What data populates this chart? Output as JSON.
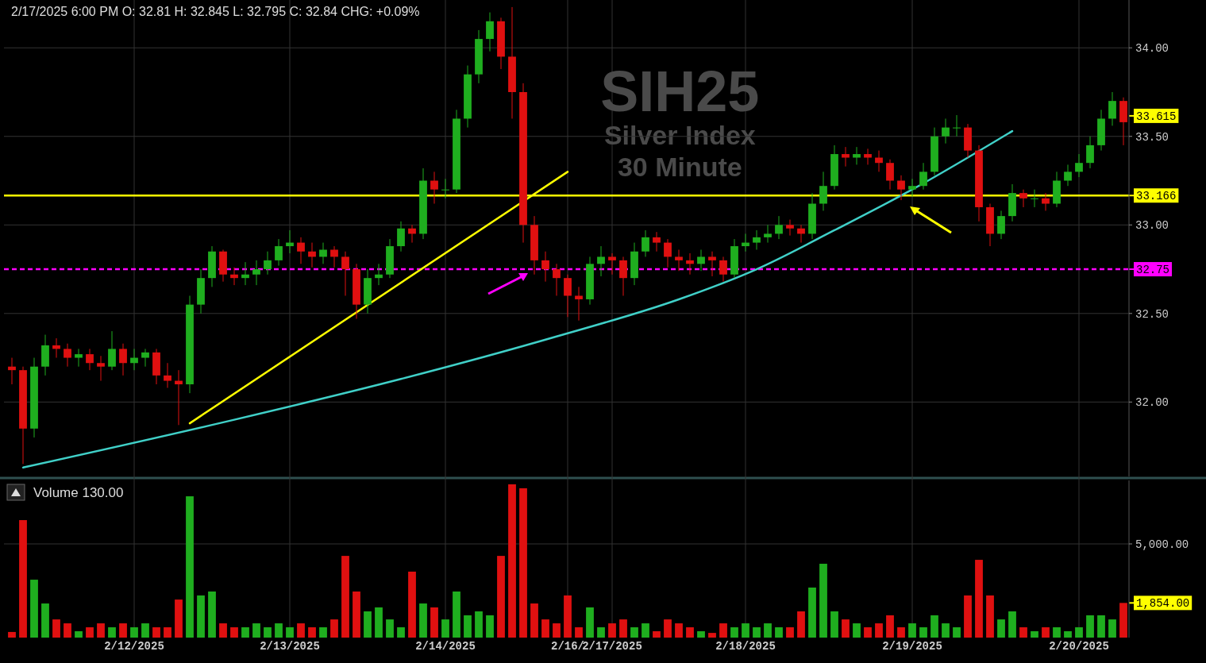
{
  "chart_data": [
    {
      "type": "candlestick",
      "title": "SIH25",
      "subtitle": "Silver Index\n30 Minute",
      "categories": [
        null,
        null,
        null,
        null,
        null,
        null,
        null,
        null,
        null,
        null,
        null,
        null,
        null,
        null,
        null,
        null,
        null,
        null,
        null,
        null,
        null,
        null,
        null,
        null,
        null,
        null,
        null,
        null,
        null,
        null,
        null,
        null,
        null,
        null,
        null,
        null,
        null,
        null,
        null,
        null,
        null,
        null,
        null,
        null,
        null,
        null,
        null,
        null,
        null,
        null,
        null,
        null,
        null,
        null,
        null,
        null,
        null,
        null,
        null,
        null,
        null,
        null,
        null,
        null,
        null,
        null,
        null,
        null,
        null,
        null,
        null,
        null,
        null,
        null,
        null,
        null,
        null,
        null,
        null,
        null,
        null,
        null,
        null,
        null,
        null,
        null,
        null,
        null,
        null,
        null,
        null,
        null,
        null,
        null,
        null,
        null,
        null,
        null,
        null,
        null,
        null
      ],
      "ohlc": [
        [
          32.2,
          32.25,
          32.1,
          32.18
        ],
        [
          32.18,
          32.2,
          31.65,
          31.85
        ],
        [
          31.85,
          32.25,
          31.8,
          32.2
        ],
        [
          32.2,
          32.38,
          32.15,
          32.32
        ],
        [
          32.32,
          32.36,
          32.25,
          32.3
        ],
        [
          32.3,
          32.33,
          32.2,
          32.25
        ],
        [
          32.25,
          32.3,
          32.2,
          32.27
        ],
        [
          32.27,
          32.3,
          32.18,
          32.22
        ],
        [
          32.22,
          32.26,
          32.12,
          32.2
        ],
        [
          32.2,
          32.4,
          32.18,
          32.3
        ],
        [
          32.3,
          32.33,
          32.15,
          32.22
        ],
        [
          32.22,
          32.3,
          32.18,
          32.25
        ],
        [
          32.25,
          32.3,
          32.2,
          32.28
        ],
        [
          32.28,
          32.3,
          32.1,
          32.15
        ],
        [
          32.15,
          32.22,
          32.08,
          32.12
        ],
        [
          32.12,
          32.18,
          31.87,
          32.1
        ],
        [
          32.1,
          32.6,
          32.05,
          32.55
        ],
        [
          32.55,
          32.75,
          32.5,
          32.7
        ],
        [
          32.7,
          32.88,
          32.65,
          32.85
        ],
        [
          32.85,
          32.86,
          32.68,
          32.72
        ],
        [
          32.72,
          32.76,
          32.66,
          32.7
        ],
        [
          32.7,
          32.79,
          32.66,
          32.72
        ],
        [
          32.72,
          32.8,
          32.66,
          32.75
        ],
        [
          32.75,
          32.85,
          32.72,
          32.8
        ],
        [
          32.8,
          32.92,
          32.77,
          32.88
        ],
        [
          32.88,
          32.97,
          32.84,
          32.9
        ],
        [
          32.9,
          32.93,
          32.78,
          32.85
        ],
        [
          32.85,
          32.9,
          32.76,
          32.82
        ],
        [
          32.82,
          32.9,
          32.78,
          32.86
        ],
        [
          32.86,
          32.88,
          32.76,
          32.82
        ],
        [
          32.82,
          32.85,
          32.6,
          32.75
        ],
        [
          32.75,
          32.78,
          32.47,
          32.55
        ],
        [
          32.55,
          32.75,
          32.5,
          32.7
        ],
        [
          32.7,
          32.78,
          32.66,
          32.72
        ],
        [
          32.72,
          32.92,
          32.7,
          32.88
        ],
        [
          32.88,
          33.02,
          32.85,
          32.98
        ],
        [
          32.98,
          33.0,
          32.9,
          32.95
        ],
        [
          32.95,
          33.32,
          32.92,
          33.25
        ],
        [
          33.25,
          33.3,
          33.12,
          33.2
        ],
        [
          33.2,
          33.26,
          33.15,
          33.2
        ],
        [
          33.2,
          33.65,
          33.18,
          33.6
        ],
        [
          33.6,
          33.9,
          33.55,
          33.85
        ],
        [
          33.85,
          34.1,
          33.8,
          34.05
        ],
        [
          34.05,
          34.2,
          33.98,
          34.15
        ],
        [
          34.15,
          34.17,
          33.88,
          33.95
        ],
        [
          33.95,
          34.23,
          33.6,
          33.75
        ],
        [
          33.75,
          33.8,
          32.9,
          33.0
        ],
        [
          33.0,
          33.05,
          32.72,
          32.8
        ],
        [
          32.8,
          32.85,
          32.68,
          32.75
        ],
        [
          32.75,
          32.78,
          32.6,
          32.7
        ],
        [
          32.7,
          32.72,
          32.48,
          32.6
        ],
        [
          32.6,
          32.65,
          32.46,
          32.58
        ],
        [
          32.58,
          32.82,
          32.55,
          32.78
        ],
        [
          32.78,
          32.88,
          32.71,
          32.82
        ],
        [
          32.82,
          32.84,
          32.72,
          32.8
        ],
        [
          32.8,
          32.82,
          32.6,
          32.7
        ],
        [
          32.7,
          32.9,
          32.66,
          32.85
        ],
        [
          32.85,
          32.97,
          32.82,
          32.93
        ],
        [
          32.93,
          32.96,
          32.85,
          32.9
        ],
        [
          32.9,
          32.92,
          32.76,
          32.82
        ],
        [
          32.82,
          32.86,
          32.74,
          32.8
        ],
        [
          32.8,
          32.84,
          32.72,
          32.78
        ],
        [
          32.78,
          32.86,
          32.74,
          32.82
        ],
        [
          32.82,
          32.85,
          32.71,
          32.8
        ],
        [
          32.8,
          32.82,
          32.68,
          32.72
        ],
        [
          32.72,
          32.92,
          32.7,
          32.88
        ],
        [
          32.88,
          32.95,
          32.85,
          32.9
        ],
        [
          32.9,
          32.97,
          32.86,
          32.93
        ],
        [
          32.93,
          33.0,
          32.9,
          32.95
        ],
        [
          32.95,
          33.05,
          32.92,
          33.0
        ],
        [
          33.0,
          33.03,
          32.94,
          32.98
        ],
        [
          32.98,
          33.0,
          32.9,
          32.95
        ],
        [
          32.95,
          33.18,
          32.92,
          33.12
        ],
        [
          33.12,
          33.3,
          33.08,
          33.22
        ],
        [
          33.22,
          33.45,
          33.2,
          33.4
        ],
        [
          33.4,
          33.44,
          33.33,
          33.38
        ],
        [
          33.38,
          33.44,
          33.34,
          33.4
        ],
        [
          33.4,
          33.43,
          33.34,
          33.38
        ],
        [
          33.38,
          33.42,
          33.3,
          33.35
        ],
        [
          33.35,
          33.37,
          33.2,
          33.25
        ],
        [
          33.25,
          33.28,
          33.14,
          33.2
        ],
        [
          33.2,
          33.26,
          33.16,
          33.22
        ],
        [
          33.22,
          33.35,
          33.2,
          33.3
        ],
        [
          33.3,
          33.55,
          33.28,
          33.5
        ],
        [
          33.5,
          33.6,
          33.46,
          33.55
        ],
        [
          33.55,
          33.62,
          33.5,
          33.55
        ],
        [
          33.55,
          33.57,
          33.38,
          33.42
        ],
        [
          33.42,
          33.45,
          33.02,
          33.1
        ],
        [
          33.1,
          33.12,
          32.88,
          32.95
        ],
        [
          32.95,
          33.08,
          32.92,
          33.05
        ],
        [
          33.05,
          33.23,
          33.02,
          33.18
        ],
        [
          33.18,
          33.2,
          33.1,
          33.15
        ],
        [
          33.15,
          33.2,
          33.1,
          33.15
        ],
        [
          33.15,
          33.18,
          33.08,
          33.12
        ],
        [
          33.12,
          33.3,
          33.1,
          33.25
        ],
        [
          33.25,
          33.34,
          33.22,
          33.3
        ],
        [
          33.3,
          33.4,
          33.27,
          33.35
        ],
        [
          33.35,
          33.5,
          33.32,
          33.45
        ],
        [
          33.45,
          33.65,
          33.42,
          33.6
        ],
        [
          33.6,
          33.75,
          33.56,
          33.7
        ],
        [
          33.7,
          33.72,
          33.45,
          33.58
        ]
      ],
      "series": [
        {
          "type": "line",
          "color": "#ffff00",
          "values": [
            null,
            null,
            null,
            null,
            null,
            null,
            null,
            null,
            null,
            null,
            null,
            null,
            null,
            null,
            null,
            null,
            31.88,
            null,
            null,
            null,
            null,
            null,
            null,
            null,
            null,
            null,
            null,
            null,
            null,
            null,
            null,
            null,
            null,
            null,
            null,
            null,
            null,
            null,
            null,
            null,
            null,
            null,
            null,
            null,
            null,
            null,
            null,
            null,
            null,
            null,
            33.3,
            null,
            null,
            null,
            null,
            null,
            null,
            null,
            null,
            null,
            null,
            null,
            null,
            null,
            null,
            null,
            null,
            null,
            null,
            null,
            null,
            null,
            null,
            null,
            null,
            null,
            null,
            null,
            null,
            null,
            null,
            null,
            null,
            null,
            null,
            null,
            null,
            null,
            null,
            null,
            null,
            null,
            null,
            null,
            null,
            null,
            null,
            null,
            null,
            null,
            null
          ]
        },
        {
          "type": "line",
          "color": "#40d0c8",
          "values": [
            null,
            31.63,
            null,
            null,
            null,
            null,
            null,
            null,
            null,
            null,
            null,
            null,
            null,
            null,
            null,
            null,
            null,
            null,
            null,
            null,
            31.9,
            null,
            null,
            null,
            null,
            null,
            null,
            null,
            null,
            null,
            null,
            null,
            null,
            null,
            null,
            32.13,
            null,
            null,
            null,
            null,
            null,
            null,
            null,
            null,
            null,
            null,
            null,
            null,
            null,
            32.37,
            null,
            null,
            null,
            null,
            null,
            null,
            null,
            null,
            null,
            null,
            32.58,
            null,
            null,
            null,
            null,
            null,
            null,
            32.75,
            null,
            null,
            null,
            null,
            null,
            null,
            32.97,
            null,
            null,
            null,
            null,
            null,
            null,
            33.2,
            null,
            null,
            null,
            null,
            null,
            null,
            null,
            null,
            33.53,
            null,
            null,
            null,
            null,
            null,
            null,
            null,
            null,
            null,
            null
          ]
        }
      ],
      "ylim": [
        31.58,
        34.27
      ],
      "yticks": [
        {
          "value": 32,
          "label": "32.00"
        },
        {
          "value": 32.5,
          "label": "32.50"
        },
        {
          "value": 33,
          "label": "33.00"
        },
        {
          "value": 33.5,
          "label": "33.50"
        },
        {
          "value": 34,
          "label": "34.00"
        }
      ],
      "ref_lines": [
        {
          "axis": "y",
          "value": 33.166,
          "label": "33.166",
          "color": "#ffff00"
        },
        {
          "axis": "y",
          "value": 32.75,
          "label": "32.75",
          "color": "#ff00ff",
          "line_style": "dashed"
        }
      ],
      "annotations": [
        "2/17/2025 6:00 PM O: 32.81 H: 32.845 L: 32.795 C: 32.84 CHG: +0.09%",
        "33.615"
      ],
      "grid": "y",
      "tick_labels": "y"
    },
    {
      "type": "bar",
      "title": "Volume 130.00",
      "categories": [
        null,
        null,
        null,
        null,
        null,
        null,
        null,
        null,
        null,
        null,
        null,
        "2/12/2025",
        null,
        null,
        null,
        null,
        null,
        null,
        null,
        null,
        null,
        null,
        null,
        null,
        null,
        "2/13/2025",
        null,
        null,
        null,
        null,
        null,
        null,
        null,
        null,
        null,
        null,
        null,
        null,
        null,
        "2/14/2025",
        null,
        null,
        null,
        null,
        null,
        null,
        null,
        null,
        null,
        null,
        "2/16/",
        null,
        null,
        null,
        "2/17/2025",
        null,
        null,
        null,
        null,
        null,
        null,
        null,
        null,
        null,
        null,
        null,
        "2/18/2025",
        null,
        null,
        null,
        null,
        null,
        null,
        null,
        null,
        null,
        null,
        null,
        null,
        null,
        null,
        "2/19/2025",
        null,
        null,
        null,
        null,
        null,
        null,
        null,
        null,
        null,
        null,
        null,
        null,
        null,
        null,
        "2/20/2025",
        null,
        null,
        null,
        null
      ],
      "values": [
        300,
        6270,
        3090,
        1820,
        970,
        760,
        340,
        550,
        760,
        550,
        760,
        550,
        760,
        550,
        550,
        2030,
        7540,
        2250,
        2460,
        760,
        550,
        550,
        760,
        550,
        760,
        550,
        760,
        550,
        550,
        970,
        4360,
        2460,
        1400,
        1610,
        970,
        550,
        3520,
        1820,
        1610,
        970,
        2460,
        1190,
        1400,
        1190,
        4360,
        8180,
        7970,
        1820,
        970,
        760,
        2250,
        550,
        1610,
        550,
        760,
        970,
        550,
        760,
        340,
        970,
        760,
        550,
        340,
        250,
        760,
        550,
        760,
        550,
        760,
        550,
        550,
        1400,
        2670,
        3940,
        1400,
        970,
        760,
        550,
        760,
        1190,
        550,
        760,
        550,
        1190,
        760,
        550,
        2250,
        4150,
        2250,
        970,
        1400,
        550,
        340,
        550,
        550,
        340,
        550,
        1190,
        1190,
        970,
        1850
      ],
      "colors": [
        "#e01010",
        "#e01010",
        "#1fae1f",
        "#1fae1f",
        "#e01010",
        "#e01010",
        "#1fae1f",
        "#e01010",
        "#e01010",
        "#1fae1f",
        "#e01010",
        "#1fae1f",
        "#1fae1f",
        "#e01010",
        "#e01010",
        "#e01010",
        "#1fae1f",
        "#1fae1f",
        "#1fae1f",
        "#e01010",
        "#e01010",
        "#1fae1f",
        "#1fae1f",
        "#1fae1f",
        "#1fae1f",
        "#1fae1f",
        "#e01010",
        "#e01010",
        "#1fae1f",
        "#e01010",
        "#e01010",
        "#e01010",
        "#1fae1f",
        "#1fae1f",
        "#1fae1f",
        "#1fae1f",
        "#e01010",
        "#1fae1f",
        "#e01010",
        "#1fae1f",
        "#1fae1f",
        "#1fae1f",
        "#1fae1f",
        "#1fae1f",
        "#e01010",
        "#e01010",
        "#e01010",
        "#e01010",
        "#e01010",
        "#e01010",
        "#e01010",
        "#e01010",
        "#1fae1f",
        "#1fae1f",
        "#e01010",
        "#e01010",
        "#1fae1f",
        "#1fae1f",
        "#e01010",
        "#e01010",
        "#e01010",
        "#e01010",
        "#1fae1f",
        "#e01010",
        "#e01010",
        "#1fae1f",
        "#1fae1f",
        "#1fae1f",
        "#1fae1f",
        "#1fae1f",
        "#e01010",
        "#e01010",
        "#1fae1f",
        "#1fae1f",
        "#1fae1f",
        "#e01010",
        "#1fae1f",
        "#e01010",
        "#e01010",
        "#e01010",
        "#e01010",
        "#1fae1f",
        "#1fae1f",
        "#1fae1f",
        "#1fae1f",
        "#1fae1f",
        "#e01010",
        "#e01010",
        "#e01010",
        "#1fae1f",
        "#1fae1f",
        "#e01010",
        "#1fae1f",
        "#e01010",
        "#1fae1f",
        "#1fae1f",
        "#1fae1f",
        "#1fae1f",
        "#1fae1f",
        "#1fae1f",
        "#e01010"
      ],
      "ylim": [
        0,
        8390
      ],
      "yticks": [
        {
          "value": 5000,
          "label": "5,000.00"
        }
      ],
      "annotations": [
        "1,854.00"
      ],
      "grid": true
    }
  ]
}
